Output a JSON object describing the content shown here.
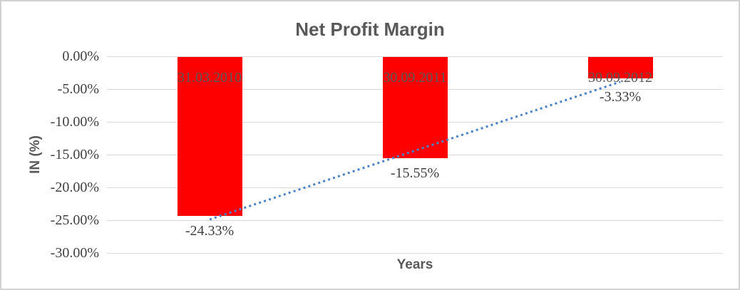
{
  "chart_data": {
    "type": "bar",
    "title": "Net Profit Margin",
    "xlabel": "Years",
    "ylabel": "IN (%)",
    "categories": [
      "31.03.2010",
      "30.09.2011",
      "30.09.2012"
    ],
    "values": [
      -24.33,
      -15.55,
      -3.33
    ],
    "data_labels": [
      "-24.33%",
      "-15.55%",
      "-3.33%"
    ],
    "y_ticks": [
      {
        "value": 0,
        "label": "0.00%"
      },
      {
        "value": -5,
        "label": "-5.00%"
      },
      {
        "value": -10,
        "label": "-10.00%"
      },
      {
        "value": -15,
        "label": "-15.00%"
      },
      {
        "value": -20,
        "label": "-20.00%"
      },
      {
        "value": -25,
        "label": "-25.00%"
      },
      {
        "value": -30,
        "label": "-30.00%"
      }
    ],
    "ylim": [
      -30,
      0
    ],
    "grid": true,
    "legend": false,
    "bar_color": "#ff0000",
    "trendline": {
      "style": "dotted",
      "color": "#4a82c8",
      "start_category_index": 0,
      "end_category_index": 2,
      "start_value": -24.9,
      "end_value": -3.9
    },
    "colors": {
      "title_text": "#595959",
      "axis_title_text": "#595959",
      "tick_label_text": "#404040",
      "category_label_text": "#595959",
      "data_label_text": "#404040",
      "gridline": "#d9d9d9",
      "frame_border": "#d2d2d2",
      "background": "#ffffff"
    }
  }
}
